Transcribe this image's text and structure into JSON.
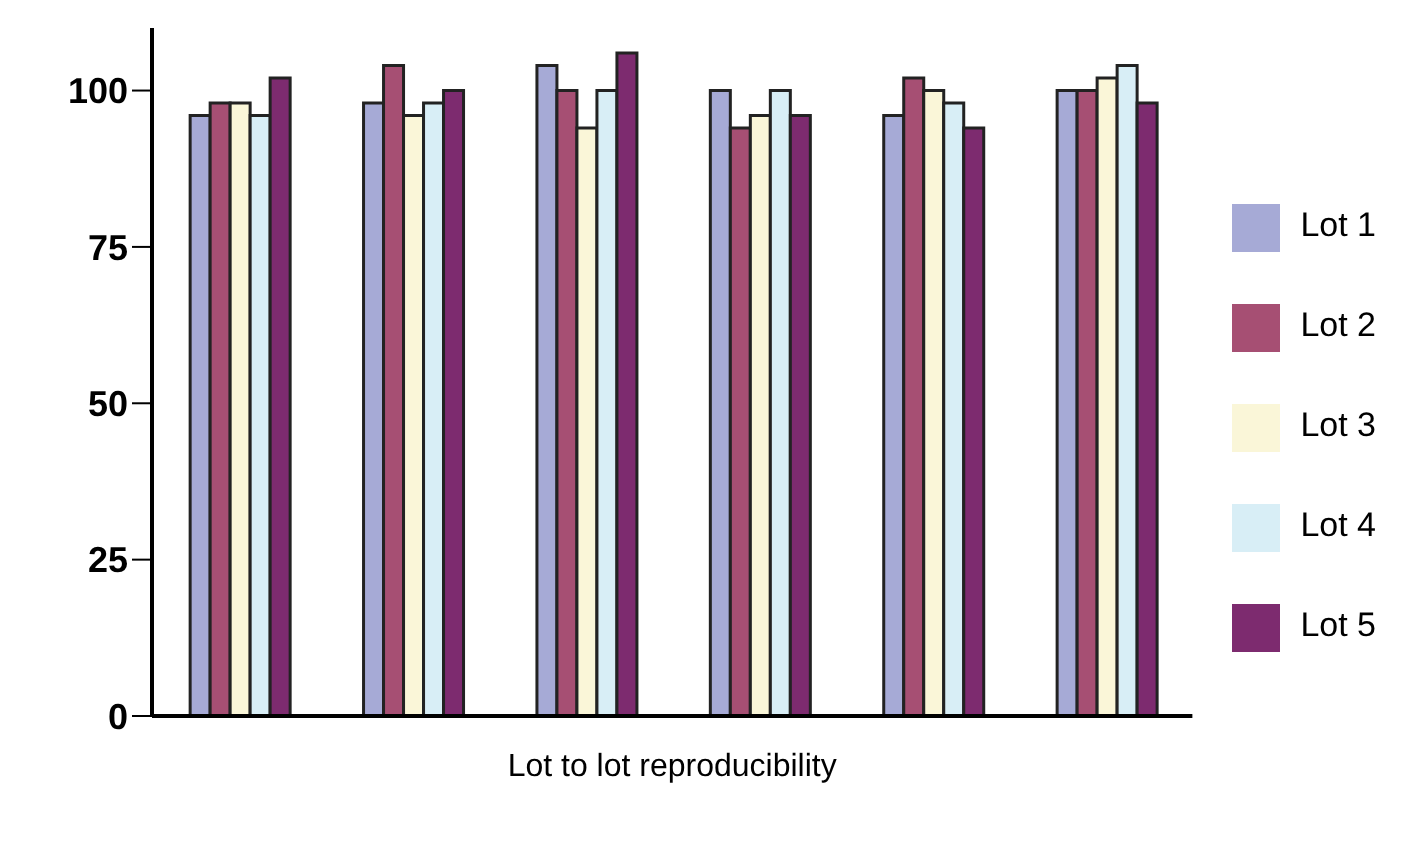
{
  "chart_data": {
    "type": "bar",
    "xlabel": "Lot to lot reproducibility",
    "categories": [
      null,
      null,
      null,
      null,
      null,
      null
    ],
    "series": [
      {
        "name": "Lot 1",
        "color": "#a6aad6",
        "values": [
          96,
          98,
          104,
          100,
          96,
          100
        ]
      },
      {
        "name": "Lot 2",
        "color": "#a64f73",
        "values": [
          98,
          104,
          100,
          94,
          102,
          100
        ]
      },
      {
        "name": "Lot 3",
        "color": "#faf6d8",
        "values": [
          98,
          96,
          94,
          96,
          100,
          102
        ]
      },
      {
        "name": "Lot 4",
        "color": "#d8eef6",
        "values": [
          96,
          98,
          100,
          100,
          98,
          104
        ]
      },
      {
        "name": "Lot 5",
        "color": "#7d2b6f",
        "values": [
          102,
          100,
          106,
          96,
          94,
          98
        ]
      }
    ],
    "ylim": [
      0,
      110
    ],
    "yticks": [
      0,
      25,
      50,
      75,
      100
    ],
    "grid": false,
    "legend": "right",
    "tick_labels": "y"
  }
}
